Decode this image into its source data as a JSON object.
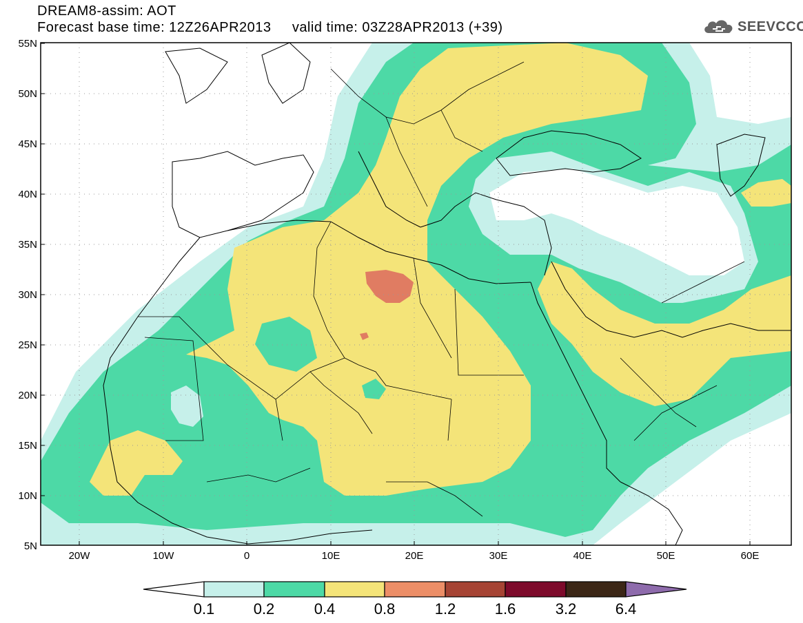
{
  "header": {
    "line1": "DREAM8-assim: AOT",
    "base_time": "Forecast base time: 12Z26APR2013",
    "valid_time": "valid time: 03Z28APR2013 (+39)"
  },
  "logo": {
    "text": "SEEVCCC",
    "icon": "cloud-icon"
  },
  "axes": {
    "lat_labels": [
      "55N",
      "50N",
      "45N",
      "40N",
      "35N",
      "30N",
      "25N",
      "20N",
      "15N",
      "10N",
      "5N"
    ],
    "lon_labels": [
      "20W",
      "10W",
      "0",
      "10E",
      "20E",
      "30E",
      "40E",
      "50E",
      "60E"
    ]
  },
  "legend": {
    "labels": [
      "0.1",
      "0.2",
      "0.4",
      "0.8",
      "1.2",
      "1.6",
      "3.2",
      "6.4"
    ],
    "colors": [
      "#ffffff",
      "#c6f0ea",
      "#4dd9a6",
      "#f4e479",
      "#ec8e67",
      "#a64434",
      "#7d0a2b",
      "#3c2717",
      "#8e6bac"
    ]
  },
  "field_colors": {
    "aot_0_1": "#c6f0ea",
    "aot_0_2": "#4dd9a6",
    "aot_0_4": "#f4e479",
    "aot_0_8": "#e07c62"
  }
}
